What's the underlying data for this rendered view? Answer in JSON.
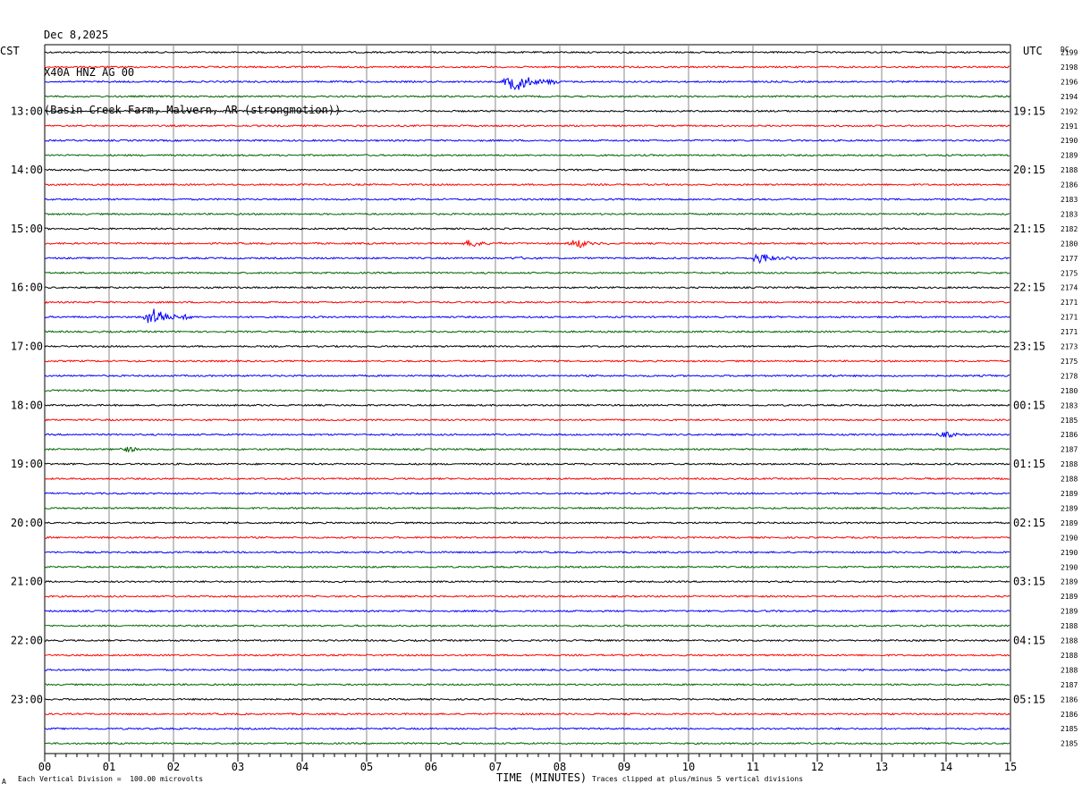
{
  "header": {
    "date": "Dec 8,2025",
    "station": "X40A HNZ AG 00",
    "location": "(Basin Creek Farm, Malvern, AR (strongmotion))"
  },
  "left_label": "CST",
  "right_label": "UTC",
  "dc_label": "DC",
  "footer": {
    "scale_note": "Each Vertical Division =  100.00 microvolts",
    "clip_note": "Traces clipped at plus/minus 5 vertical divisions",
    "mark": "A"
  },
  "chart_data": {
    "type": "line",
    "title": "X40A HNZ AG 00",
    "xlabel": "TIME (MINUTES)",
    "ylabel": "",
    "xlim": [
      0,
      15
    ],
    "x_ticks": [
      "00",
      "01",
      "02",
      "03",
      "04",
      "05",
      "06",
      "07",
      "08",
      "09",
      "10",
      "11",
      "12",
      "13",
      "14",
      "15"
    ],
    "trace_colors": [
      "#000000",
      "#ff0000",
      "#0000ff",
      "#006400"
    ],
    "trace_minutes": 15,
    "left_hour_labels": [
      "13:00",
      "14:00",
      "15:00",
      "16:00",
      "17:00",
      "18:00",
      "19:00",
      "20:00",
      "21:00",
      "22:00",
      "23:00"
    ],
    "right_hour_labels": [
      "19:15",
      "20:15",
      "21:15",
      "22:15",
      "23:15",
      "00:15",
      "01:15",
      "02:15",
      "03:15",
      "04:15",
      "05:15"
    ],
    "dc_offsets": [
      "2199",
      "2198",
      "2196",
      "2194",
      "2192",
      "2191",
      "2190",
      "2189",
      "2188",
      "2186",
      "2183",
      "2183",
      "2182",
      "2180",
      "2177",
      "2175",
      "2174",
      "2171",
      "2171",
      "2171",
      "2173",
      "2175",
      "2178",
      "2180",
      "2183",
      "2185",
      "2186",
      "2187",
      "2188",
      "2188",
      "2189",
      "2189",
      "2189",
      "2190",
      "2190",
      "2190",
      "2189",
      "2189",
      "2189",
      "2188",
      "2188",
      "2188",
      "2188",
      "2187",
      "2186",
      "2186",
      "2185",
      "2185"
    ],
    "events": [
      {
        "trace": 2,
        "start_min": 7.1,
        "end_min": 8.0,
        "amplitude_div": 5
      },
      {
        "trace": 14,
        "start_min": 10.95,
        "end_min": 11.7,
        "amplitude_div": 3
      },
      {
        "trace": 13,
        "start_min": 5.0,
        "end_min": 5.1,
        "amplitude_div": 1
      },
      {
        "trace": 13,
        "start_min": 6.5,
        "end_min": 7.1,
        "amplitude_div": 2.5
      },
      {
        "trace": 13,
        "start_min": 8.1,
        "end_min": 8.8,
        "amplitude_div": 2.5
      },
      {
        "trace": 14,
        "start_min": 7.0,
        "end_min": 8.5,
        "amplitude_div": 0.8
      },
      {
        "trace": 18,
        "start_min": 1.5,
        "end_min": 2.3,
        "amplitude_div": 5
      },
      {
        "trace": 22,
        "start_min": 12.0,
        "end_min": 12.8,
        "amplitude_div": 0.8
      },
      {
        "trace": 22,
        "start_min": 14.5,
        "end_min": 15.0,
        "amplitude_div": 0.7
      },
      {
        "trace": 23,
        "start_min": 10.0,
        "end_min": 10.8,
        "amplitude_div": 0.5
      },
      {
        "trace": 26,
        "start_min": 13.8,
        "end_min": 14.6,
        "amplitude_div": 1.6
      },
      {
        "trace": 27,
        "start_min": 1.1,
        "end_min": 1.8,
        "amplitude_div": 1.6
      },
      {
        "trace": 29,
        "start_min": 13.6,
        "end_min": 14.0,
        "amplitude_div": 0.6
      },
      {
        "trace": 38,
        "start_min": 10.7,
        "end_min": 12.8,
        "amplitude_div": 0.6
      }
    ]
  }
}
